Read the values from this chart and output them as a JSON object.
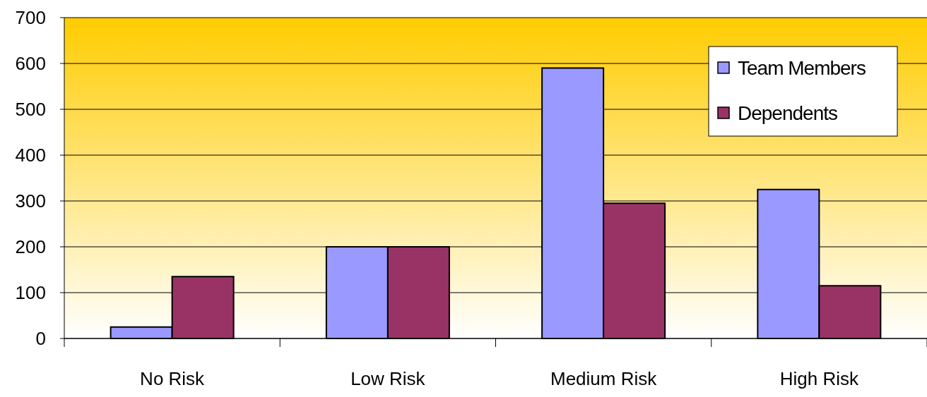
{
  "chart_data": {
    "type": "bar",
    "categories": [
      "No Risk",
      "Low Risk",
      "Medium Risk",
      "High Risk"
    ],
    "series": [
      {
        "name": "Team Members",
        "color": "#9999ff",
        "values": [
          25,
          200,
          590,
          325
        ]
      },
      {
        "name": "Dependents",
        "color": "#993366",
        "values": [
          135,
          200,
          295,
          115
        ]
      }
    ],
    "ylim": [
      0,
      700
    ],
    "yticks": [
      0,
      100,
      200,
      300,
      400,
      500,
      600,
      700
    ],
    "grid": "y",
    "legend": "top right"
  }
}
